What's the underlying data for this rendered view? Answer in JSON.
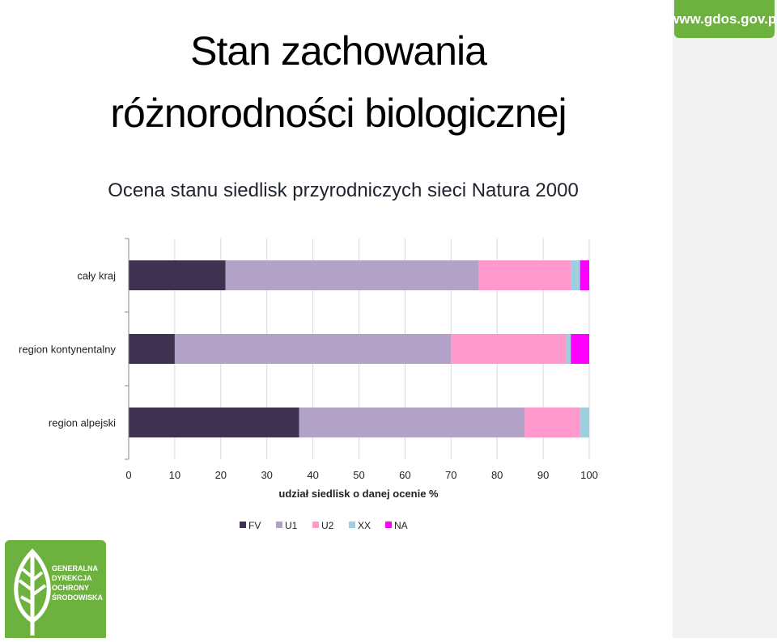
{
  "header": {
    "title_line1": "Stan zachowania",
    "title_line2": "różnorodności biologicznej",
    "subtitle": "Ocena stanu siedlisk przyrodniczych sieci Natura 2000",
    "url": "www.gdos.gov.pl"
  },
  "logo": {
    "lines": [
      "GENERALNA",
      "DYREKCJA",
      "OCHRONY",
      "ŚRODOWISKA"
    ]
  },
  "colors": {
    "FV": "#3e3250",
    "U1": "#b3a2c8",
    "U2": "#ff99cc",
    "XX": "#9dcfdf",
    "NA": "#ff00ff",
    "brand_green": "#6db23f"
  },
  "chart_data": {
    "type": "bar",
    "orientation": "horizontal",
    "stacked": true,
    "categories": [
      "cały kraj",
      "region kontynentalny",
      "region alpejski"
    ],
    "series": [
      {
        "name": "FV",
        "values": [
          21,
          10,
          37
        ]
      },
      {
        "name": "U1",
        "values": [
          55,
          60,
          49
        ]
      },
      {
        "name": "U2",
        "values": [
          20,
          25,
          12
        ]
      },
      {
        "name": "XX",
        "values": [
          2,
          1,
          2
        ]
      },
      {
        "name": "NA",
        "values": [
          2,
          4,
          0
        ]
      }
    ],
    "xlabel": "udział siedlisk o danej ocenie %",
    "xlim": [
      0,
      100
    ],
    "xticks": [
      0,
      10,
      20,
      30,
      40,
      50,
      60,
      70,
      80,
      90,
      100
    ],
    "grid": "vertical",
    "legend_position": "bottom"
  }
}
